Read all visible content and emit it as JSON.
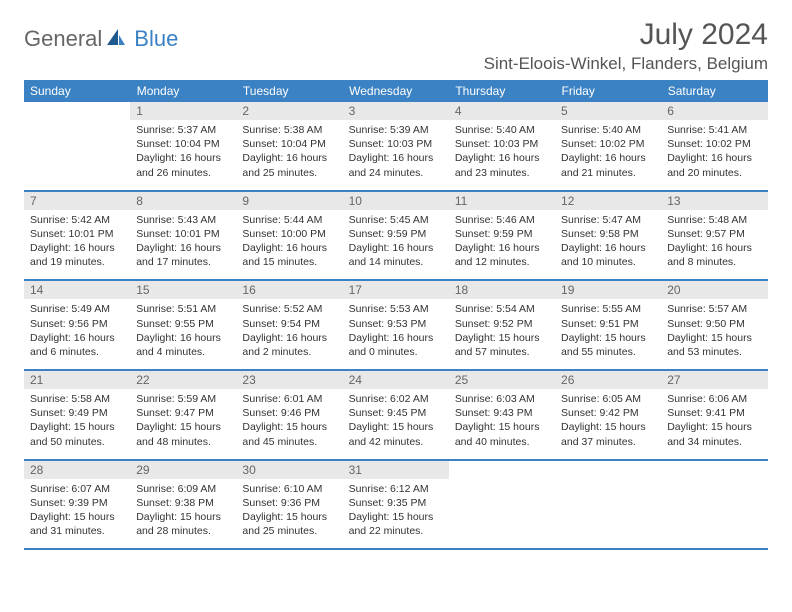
{
  "logo": {
    "part1": "General",
    "part2": "Blue"
  },
  "title": "July 2024",
  "location": "Sint-Eloois-Winkel, Flanders, Belgium",
  "colors": {
    "header_bg": "#3b82c4",
    "header_text": "#ffffff",
    "daynum_bg": "#e8e8e8",
    "daynum_text": "#666666",
    "text": "#333333",
    "row_border": "#3b82c4"
  },
  "daynames": [
    "Sunday",
    "Monday",
    "Tuesday",
    "Wednesday",
    "Thursday",
    "Friday",
    "Saturday"
  ],
  "start_weekday": 1,
  "days": [
    {
      "n": 1,
      "sunrise": "5:37 AM",
      "sunset": "10:04 PM",
      "daylight": "16 hours and 26 minutes."
    },
    {
      "n": 2,
      "sunrise": "5:38 AM",
      "sunset": "10:04 PM",
      "daylight": "16 hours and 25 minutes."
    },
    {
      "n": 3,
      "sunrise": "5:39 AM",
      "sunset": "10:03 PM",
      "daylight": "16 hours and 24 minutes."
    },
    {
      "n": 4,
      "sunrise": "5:40 AM",
      "sunset": "10:03 PM",
      "daylight": "16 hours and 23 minutes."
    },
    {
      "n": 5,
      "sunrise": "5:40 AM",
      "sunset": "10:02 PM",
      "daylight": "16 hours and 21 minutes."
    },
    {
      "n": 6,
      "sunrise": "5:41 AM",
      "sunset": "10:02 PM",
      "daylight": "16 hours and 20 minutes."
    },
    {
      "n": 7,
      "sunrise": "5:42 AM",
      "sunset": "10:01 PM",
      "daylight": "16 hours and 19 minutes."
    },
    {
      "n": 8,
      "sunrise": "5:43 AM",
      "sunset": "10:01 PM",
      "daylight": "16 hours and 17 minutes."
    },
    {
      "n": 9,
      "sunrise": "5:44 AM",
      "sunset": "10:00 PM",
      "daylight": "16 hours and 15 minutes."
    },
    {
      "n": 10,
      "sunrise": "5:45 AM",
      "sunset": "9:59 PM",
      "daylight": "16 hours and 14 minutes."
    },
    {
      "n": 11,
      "sunrise": "5:46 AM",
      "sunset": "9:59 PM",
      "daylight": "16 hours and 12 minutes."
    },
    {
      "n": 12,
      "sunrise": "5:47 AM",
      "sunset": "9:58 PM",
      "daylight": "16 hours and 10 minutes."
    },
    {
      "n": 13,
      "sunrise": "5:48 AM",
      "sunset": "9:57 PM",
      "daylight": "16 hours and 8 minutes."
    },
    {
      "n": 14,
      "sunrise": "5:49 AM",
      "sunset": "9:56 PM",
      "daylight": "16 hours and 6 minutes."
    },
    {
      "n": 15,
      "sunrise": "5:51 AM",
      "sunset": "9:55 PM",
      "daylight": "16 hours and 4 minutes."
    },
    {
      "n": 16,
      "sunrise": "5:52 AM",
      "sunset": "9:54 PM",
      "daylight": "16 hours and 2 minutes."
    },
    {
      "n": 17,
      "sunrise": "5:53 AM",
      "sunset": "9:53 PM",
      "daylight": "16 hours and 0 minutes."
    },
    {
      "n": 18,
      "sunrise": "5:54 AM",
      "sunset": "9:52 PM",
      "daylight": "15 hours and 57 minutes."
    },
    {
      "n": 19,
      "sunrise": "5:55 AM",
      "sunset": "9:51 PM",
      "daylight": "15 hours and 55 minutes."
    },
    {
      "n": 20,
      "sunrise": "5:57 AM",
      "sunset": "9:50 PM",
      "daylight": "15 hours and 53 minutes."
    },
    {
      "n": 21,
      "sunrise": "5:58 AM",
      "sunset": "9:49 PM",
      "daylight": "15 hours and 50 minutes."
    },
    {
      "n": 22,
      "sunrise": "5:59 AM",
      "sunset": "9:47 PM",
      "daylight": "15 hours and 48 minutes."
    },
    {
      "n": 23,
      "sunrise": "6:01 AM",
      "sunset": "9:46 PM",
      "daylight": "15 hours and 45 minutes."
    },
    {
      "n": 24,
      "sunrise": "6:02 AM",
      "sunset": "9:45 PM",
      "daylight": "15 hours and 42 minutes."
    },
    {
      "n": 25,
      "sunrise": "6:03 AM",
      "sunset": "9:43 PM",
      "daylight": "15 hours and 40 minutes."
    },
    {
      "n": 26,
      "sunrise": "6:05 AM",
      "sunset": "9:42 PM",
      "daylight": "15 hours and 37 minutes."
    },
    {
      "n": 27,
      "sunrise": "6:06 AM",
      "sunset": "9:41 PM",
      "daylight": "15 hours and 34 minutes."
    },
    {
      "n": 28,
      "sunrise": "6:07 AM",
      "sunset": "9:39 PM",
      "daylight": "15 hours and 31 minutes."
    },
    {
      "n": 29,
      "sunrise": "6:09 AM",
      "sunset": "9:38 PM",
      "daylight": "15 hours and 28 minutes."
    },
    {
      "n": 30,
      "sunrise": "6:10 AM",
      "sunset": "9:36 PM",
      "daylight": "15 hours and 25 minutes."
    },
    {
      "n": 31,
      "sunrise": "6:12 AM",
      "sunset": "9:35 PM",
      "daylight": "15 hours and 22 minutes."
    }
  ],
  "labels": {
    "sunrise": "Sunrise:",
    "sunset": "Sunset:",
    "daylight": "Daylight:"
  }
}
